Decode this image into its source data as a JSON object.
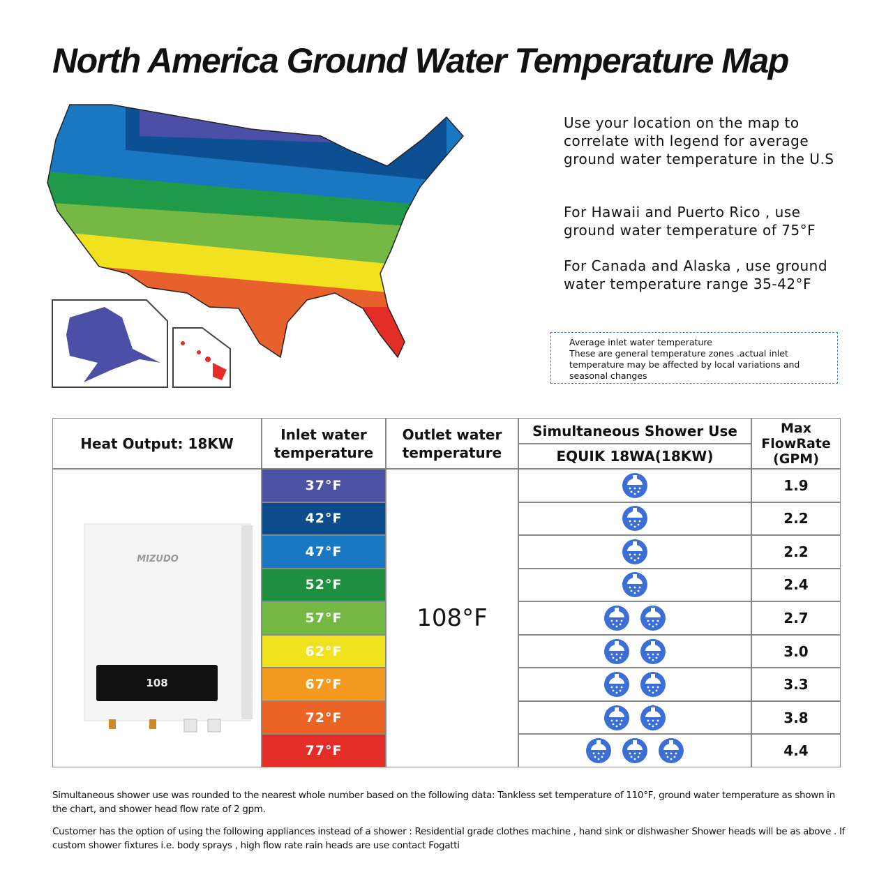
{
  "title": "North America Ground Water Temperature Map",
  "notes": [
    "Use your location on the map to correlate with legend for average ground water temperature in the U.S",
    "For Hawaii and Puerto Rico , use ground water temperature of 75°F",
    "For Canada and Alaska , use ground water temperature range 35-42°F"
  ],
  "legend_box": [
    "Average inlet water temperature",
    "These are general temperature zones .actual inlet temperature may be affected by local variations and seasonal changes"
  ],
  "table": {
    "headers": {
      "heat_output": "Heat Output: 18KW",
      "inlet": "Inlet water temperature",
      "outlet": "Outlet water temperature",
      "showers": "Simultaneous Shower Use",
      "model": "EQUIK 18WA(18KW)",
      "flow": "Max FlowRate (GPM)"
    },
    "outlet_value": "108°F",
    "rows": [
      {
        "inlet": "37°F",
        "color": "#4b52a3",
        "showers": 1,
        "flow": "1.9"
      },
      {
        "inlet": "42°F",
        "color": "#0b4d8c",
        "showers": 1,
        "flow": "2.2"
      },
      {
        "inlet": "47°F",
        "color": "#1a78c2",
        "showers": 1,
        "flow": "2.2"
      },
      {
        "inlet": "52°F",
        "color": "#1e8f3e",
        "showers": 1,
        "flow": "2.4"
      },
      {
        "inlet": "57°F",
        "color": "#72b843",
        "showers": 2,
        "flow": "2.7"
      },
      {
        "inlet": "62°F",
        "color": "#f0e21e",
        "showers": 2,
        "flow": "3.0"
      },
      {
        "inlet": "67°F",
        "color": "#f39b1f",
        "showers": 2,
        "flow": "3.3"
      },
      {
        "inlet": "72°F",
        "color": "#eb6426",
        "showers": 2,
        "flow": "3.8"
      },
      {
        "inlet": "77°F",
        "color": "#e42d26",
        "showers": 3,
        "flow": "4.4"
      }
    ]
  },
  "product": {
    "brand": "MIZUDO",
    "display": "108"
  },
  "footnotes": [
    "Simultaneous shower use was rounded to the nearest whole number based on the following data: Tankless set temperature of 110°F, ground water temperature as shown in the chart, and shower head flow rate of 2 gpm.",
    "Customer has the option of using the following appliances instead of a shower : Residential grade clothes machine , hand sink or dishwasher Shower heads will be as above . If custom shower fixtures i.e. body sprays , high flow rate rain heads are use contact Fogatti"
  ]
}
